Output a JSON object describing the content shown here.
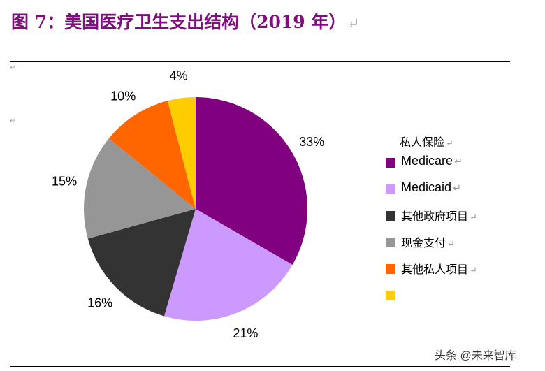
{
  "title": "图 7：美国医疗卫生支出结构（2019 年）",
  "watermark": "头条 @未来智库",
  "chart_data": {
    "type": "pie",
    "title": "图 7：美国医疗卫生支出结构（2019 年）",
    "legend_placement": "right",
    "legend_header": "私人保险",
    "slices": [
      {
        "label": "Medicare",
        "value": 33,
        "value_label": "33%",
        "color": "#800080"
      },
      {
        "label": "Medicaid",
        "value": 21,
        "value_label": "21%",
        "color": "#cc99ff"
      },
      {
        "label": "其他政府项目",
        "value": 16,
        "value_label": "16%",
        "color": "#333333"
      },
      {
        "label": "现金支付",
        "value": 15,
        "value_label": "15%",
        "color": "#969696"
      },
      {
        "label": "其他私人项目",
        "value": 10,
        "value_label": "10%",
        "color": "#ff6600"
      },
      {
        "label": "",
        "value": 4,
        "value_label": "4%",
        "color": "#ffcc00"
      }
    ]
  }
}
